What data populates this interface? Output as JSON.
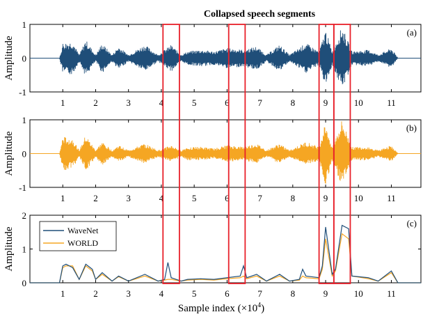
{
  "annotation": "Collapsed speech segments",
  "xlabel": "Sample index (×10",
  "xlabel_exp": "4",
  "xlabel_close": ")",
  "colors": {
    "wavenet": "#1f4e79",
    "world": "#f5a623",
    "highlight": "#e8202a",
    "annotation": "#e8202a"
  },
  "chart_data": [
    {
      "type": "line",
      "panel_label": "(a)",
      "ylabel": "Amplitude",
      "xlim": [
        0,
        11.9
      ],
      "ylim": [
        -1,
        1
      ],
      "yticks": [
        -1,
        0,
        1
      ],
      "xticks": [
        1,
        2,
        3,
        4,
        5,
        6,
        7,
        8,
        9,
        10,
        11
      ],
      "series": [
        {
          "color": "#1f4e79",
          "envelope": [
            {
              "x": 0.0,
              "y": 0.0
            },
            {
              "x": 0.9,
              "y": 0.0
            },
            {
              "x": 1.0,
              "y": 0.45
            },
            {
              "x": 1.3,
              "y": 0.5
            },
            {
              "x": 1.5,
              "y": 0.1
            },
            {
              "x": 1.7,
              "y": 0.55
            },
            {
              "x": 2.0,
              "y": 0.1
            },
            {
              "x": 2.2,
              "y": 0.45
            },
            {
              "x": 2.5,
              "y": 0.1
            },
            {
              "x": 2.7,
              "y": 0.35
            },
            {
              "x": 3.0,
              "y": 0.1
            },
            {
              "x": 3.5,
              "y": 0.4
            },
            {
              "x": 3.9,
              "y": 0.1
            },
            {
              "x": 4.3,
              "y": 0.4
            },
            {
              "x": 4.6,
              "y": 0.1
            },
            {
              "x": 4.8,
              "y": 0.2
            },
            {
              "x": 5.2,
              "y": 0.25
            },
            {
              "x": 5.6,
              "y": 0.2
            },
            {
              "x": 6.0,
              "y": 0.3
            },
            {
              "x": 6.5,
              "y": 0.25
            },
            {
              "x": 6.9,
              "y": 0.35
            },
            {
              "x": 7.2,
              "y": 0.1
            },
            {
              "x": 7.6,
              "y": 0.4
            },
            {
              "x": 7.9,
              "y": 0.1
            },
            {
              "x": 8.4,
              "y": 0.45
            },
            {
              "x": 8.8,
              "y": 0.2
            },
            {
              "x": 9.0,
              "y": 0.85
            },
            {
              "x": 9.2,
              "y": 0.2
            },
            {
              "x": 9.5,
              "y": 0.95
            },
            {
              "x": 9.8,
              "y": 0.2
            },
            {
              "x": 10.3,
              "y": 0.25
            },
            {
              "x": 10.6,
              "y": 0.1
            },
            {
              "x": 11.0,
              "y": 0.3
            },
            {
              "x": 11.2,
              "y": 0.0
            },
            {
              "x": 11.9,
              "y": 0.0
            }
          ]
        }
      ]
    },
    {
      "type": "line",
      "panel_label": "(b)",
      "ylabel": "Amplitude",
      "xlim": [
        0,
        11.9
      ],
      "ylim": [
        -1,
        1
      ],
      "yticks": [
        -1,
        0,
        1
      ],
      "xticks": [
        1,
        2,
        3,
        4,
        5,
        6,
        7,
        8,
        9,
        10,
        11
      ],
      "series": [
        {
          "color": "#f5a623",
          "envelope": [
            {
              "x": 0.0,
              "y": 0.0
            },
            {
              "x": 0.9,
              "y": 0.0
            },
            {
              "x": 1.0,
              "y": 0.5
            },
            {
              "x": 1.3,
              "y": 0.45
            },
            {
              "x": 1.5,
              "y": 0.1
            },
            {
              "x": 1.7,
              "y": 0.55
            },
            {
              "x": 2.0,
              "y": 0.1
            },
            {
              "x": 2.2,
              "y": 0.35
            },
            {
              "x": 2.5,
              "y": 0.1
            },
            {
              "x": 2.7,
              "y": 0.25
            },
            {
              "x": 3.0,
              "y": 0.1
            },
            {
              "x": 3.5,
              "y": 0.3
            },
            {
              "x": 3.9,
              "y": 0.1
            },
            {
              "x": 4.3,
              "y": 0.25
            },
            {
              "x": 4.6,
              "y": 0.1
            },
            {
              "x": 4.8,
              "y": 0.2
            },
            {
              "x": 5.2,
              "y": 0.2
            },
            {
              "x": 5.6,
              "y": 0.15
            },
            {
              "x": 6.0,
              "y": 0.25
            },
            {
              "x": 6.5,
              "y": 0.2
            },
            {
              "x": 6.9,
              "y": 0.3
            },
            {
              "x": 7.2,
              "y": 0.1
            },
            {
              "x": 7.6,
              "y": 0.3
            },
            {
              "x": 7.9,
              "y": 0.1
            },
            {
              "x": 8.4,
              "y": 0.35
            },
            {
              "x": 8.8,
              "y": 0.2
            },
            {
              "x": 9.0,
              "y": 0.95
            },
            {
              "x": 9.2,
              "y": 0.2
            },
            {
              "x": 9.5,
              "y": 1.0
            },
            {
              "x": 9.8,
              "y": 0.2
            },
            {
              "x": 10.3,
              "y": 0.2
            },
            {
              "x": 10.6,
              "y": 0.1
            },
            {
              "x": 11.0,
              "y": 0.25
            },
            {
              "x": 11.2,
              "y": 0.0
            },
            {
              "x": 11.9,
              "y": 0.0
            }
          ]
        }
      ]
    },
    {
      "type": "line",
      "panel_label": "(c)",
      "ylabel": "Amplitude",
      "xlim": [
        0,
        11.9
      ],
      "ylim": [
        0,
        2
      ],
      "yticks": [
        0,
        1,
        2
      ],
      "xticks": [
        1,
        2,
        3,
        4,
        5,
        6,
        7,
        8,
        9,
        10,
        11
      ],
      "legend": {
        "location": "upper-left",
        "entries": [
          "WaveNet",
          "WORLD"
        ]
      },
      "series": [
        {
          "name": "WaveNet",
          "color": "#1f4e79",
          "x": [
            0.0,
            0.9,
            1.0,
            1.1,
            1.3,
            1.5,
            1.7,
            1.9,
            2.0,
            2.2,
            2.5,
            2.7,
            3.0,
            3.5,
            3.9,
            4.1,
            4.2,
            4.3,
            4.6,
            4.8,
            5.2,
            5.6,
            6.0,
            6.4,
            6.5,
            6.6,
            6.9,
            7.2,
            7.6,
            7.9,
            8.2,
            8.3,
            8.4,
            8.8,
            8.9,
            9.0,
            9.2,
            9.3,
            9.5,
            9.7,
            9.8,
            10.3,
            10.6,
            11.0,
            11.2,
            11.9
          ],
          "y": [
            0.0,
            0.0,
            0.5,
            0.55,
            0.45,
            0.1,
            0.55,
            0.4,
            0.1,
            0.3,
            0.05,
            0.2,
            0.05,
            0.25,
            0.05,
            0.1,
            0.6,
            0.15,
            0.05,
            0.1,
            0.12,
            0.1,
            0.15,
            0.2,
            0.5,
            0.15,
            0.25,
            0.05,
            0.25,
            0.05,
            0.1,
            0.4,
            0.2,
            0.15,
            0.5,
            1.65,
            0.25,
            0.4,
            1.7,
            1.6,
            0.2,
            0.15,
            0.05,
            0.35,
            0.0,
            0.0
          ]
        },
        {
          "name": "WORLD",
          "color": "#f5a623",
          "x": [
            0.0,
            0.9,
            1.0,
            1.1,
            1.3,
            1.5,
            1.7,
            1.9,
            2.0,
            2.2,
            2.5,
            2.7,
            3.0,
            3.5,
            3.9,
            4.1,
            4.2,
            4.3,
            4.6,
            4.8,
            5.2,
            5.6,
            6.0,
            6.4,
            6.5,
            6.6,
            6.9,
            7.2,
            7.6,
            7.9,
            8.2,
            8.3,
            8.4,
            8.8,
            8.9,
            9.0,
            9.2,
            9.3,
            9.5,
            9.7,
            9.8,
            10.3,
            10.6,
            11.0,
            11.2,
            11.9
          ],
          "y": [
            0.0,
            0.0,
            0.45,
            0.5,
            0.5,
            0.1,
            0.5,
            0.35,
            0.1,
            0.25,
            0.05,
            0.18,
            0.05,
            0.2,
            0.05,
            0.08,
            0.1,
            0.1,
            0.05,
            0.08,
            0.1,
            0.08,
            0.12,
            0.15,
            0.2,
            0.12,
            0.2,
            0.05,
            0.2,
            0.05,
            0.08,
            0.2,
            0.15,
            0.12,
            0.4,
            1.3,
            0.2,
            0.35,
            1.45,
            1.3,
            0.2,
            0.12,
            0.05,
            0.3,
            0.0,
            0.0
          ]
        }
      ]
    }
  ],
  "highlight_boxes_x": [
    [
      4.05,
      4.55
    ],
    [
      6.05,
      6.55
    ],
    [
      8.8,
      9.25
    ],
    [
      9.25,
      9.75
    ]
  ]
}
